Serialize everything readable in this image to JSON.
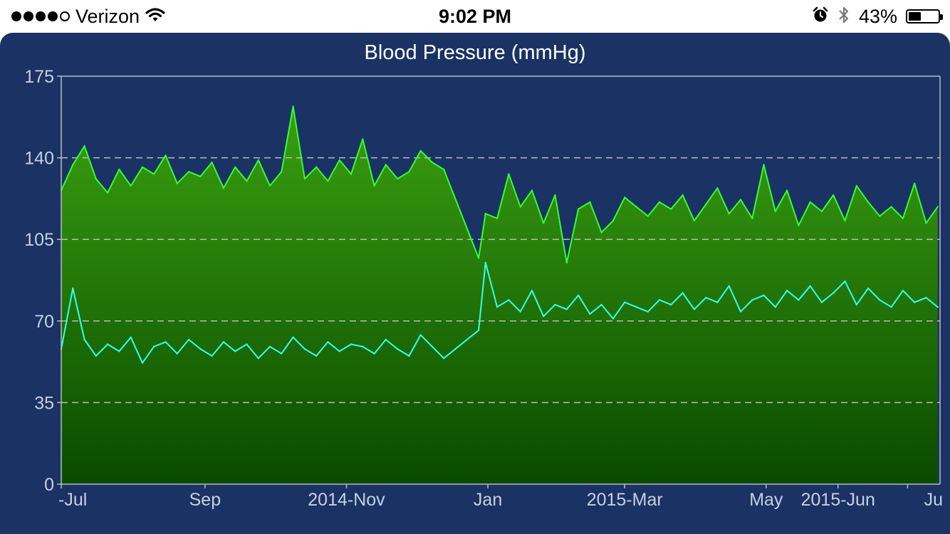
{
  "status_bar": {
    "signal_filled": 4,
    "signal_total": 5,
    "carrier": "Verizon",
    "time": "9:02 PM",
    "battery_percent": "43%",
    "battery_level": 0.43,
    "icons": [
      "wifi-icon",
      "alarm-icon",
      "bluetooth-icon",
      "battery-icon"
    ]
  },
  "colors": {
    "panel_bg": "#1a3264",
    "systolic_line": "#33ff33",
    "diastolic_line": "#33ffee",
    "fill_top": "#3aa010",
    "fill_bottom": "#0a4a00",
    "grid": "#bbbbbb",
    "axis_text": "#c8d0e0"
  },
  "chart_data": {
    "type": "area",
    "title": "Blood Pressure (mmHg)",
    "xlabel": "",
    "ylabel": "",
    "ylim": [
      0,
      175
    ],
    "yticks": [
      0,
      35,
      70,
      105,
      140,
      175
    ],
    "grid": "dashed horizontal at 35, 70, 105, 140",
    "x_range": [
      "2014-07-01",
      "2015-07-15"
    ],
    "xtick_labels": [
      {
        "label": "-Jul",
        "date": "2014-07-01"
      },
      {
        "label": "Sep",
        "date": "2014-09-01"
      },
      {
        "label": "2014-Nov",
        "date": "2014-11-01"
      },
      {
        "label": "Jan",
        "date": "2015-01-01"
      },
      {
        "label": "2015-Mar",
        "date": "2015-03-01"
      },
      {
        "label": "May",
        "date": "2015-05-01"
      },
      {
        "label": "2015-Jun",
        "date": "2015-06-01"
      },
      {
        "label": "Ju",
        "date": "2015-07-01"
      }
    ],
    "series": [
      {
        "id": "systolic",
        "x": [
          "2014-07-01",
          "2014-07-06",
          "2014-07-11",
          "2014-07-16",
          "2014-07-21",
          "2014-07-26",
          "2014-07-31",
          "2014-08-05",
          "2014-08-10",
          "2014-08-15",
          "2014-08-20",
          "2014-08-25",
          "2014-08-30",
          "2014-09-04",
          "2014-09-09",
          "2014-09-14",
          "2014-09-19",
          "2014-09-24",
          "2014-09-29",
          "2014-10-04",
          "2014-10-09",
          "2014-10-14",
          "2014-10-19",
          "2014-10-24",
          "2014-10-29",
          "2014-11-03",
          "2014-11-08",
          "2014-11-13",
          "2014-11-18",
          "2014-11-23",
          "2014-11-28",
          "2014-12-03",
          "2014-12-08",
          "2014-12-13",
          "2014-12-28",
          "2014-12-31",
          "2015-01-05",
          "2015-01-10",
          "2015-01-15",
          "2015-01-20",
          "2015-01-25",
          "2015-01-30",
          "2015-02-04",
          "2015-02-09",
          "2015-02-14",
          "2015-02-19",
          "2015-02-24",
          "2015-03-01",
          "2015-03-06",
          "2015-03-11",
          "2015-03-16",
          "2015-03-21",
          "2015-03-26",
          "2015-03-31",
          "2015-04-05",
          "2015-04-10",
          "2015-04-15",
          "2015-04-20",
          "2015-04-25",
          "2015-04-30",
          "2015-05-05",
          "2015-05-10",
          "2015-05-15",
          "2015-05-20",
          "2015-05-25",
          "2015-05-30",
          "2015-06-04",
          "2015-06-09",
          "2015-06-14",
          "2015-06-19",
          "2015-06-24",
          "2015-06-29",
          "2015-07-04",
          "2015-07-09",
          "2015-07-14"
        ],
        "y": [
          126,
          137,
          145,
          131,
          125,
          135,
          128,
          136,
          133,
          141,
          129,
          134,
          132,
          138,
          127,
          136,
          130,
          139,
          128,
          134,
          162,
          131,
          136,
          130,
          139,
          133,
          148,
          128,
          137,
          131,
          134,
          143,
          138,
          135,
          97,
          116,
          114,
          133,
          119,
          126,
          112,
          124,
          95,
          118,
          121,
          108,
          113,
          123,
          119,
          115,
          121,
          118,
          124,
          113,
          120,
          127,
          116,
          122,
          114,
          137,
          117,
          126,
          111,
          121,
          117,
          124,
          113,
          128,
          121,
          115,
          119,
          114,
          129,
          112,
          119
        ]
      },
      {
        "id": "diastolic",
        "x": [
          "2014-07-01",
          "2014-07-06",
          "2014-07-11",
          "2014-07-16",
          "2014-07-21",
          "2014-07-26",
          "2014-07-31",
          "2014-08-05",
          "2014-08-10",
          "2014-08-15",
          "2014-08-20",
          "2014-08-25",
          "2014-08-30",
          "2014-09-04",
          "2014-09-09",
          "2014-09-14",
          "2014-09-19",
          "2014-09-24",
          "2014-09-29",
          "2014-10-04",
          "2014-10-09",
          "2014-10-14",
          "2014-10-19",
          "2014-10-24",
          "2014-10-29",
          "2014-11-03",
          "2014-11-08",
          "2014-11-13",
          "2014-11-18",
          "2014-11-23",
          "2014-11-28",
          "2014-12-03",
          "2014-12-08",
          "2014-12-13",
          "2014-12-28",
          "2014-12-31",
          "2015-01-05",
          "2015-01-10",
          "2015-01-15",
          "2015-01-20",
          "2015-01-25",
          "2015-01-30",
          "2015-02-04",
          "2015-02-09",
          "2015-02-14",
          "2015-02-19",
          "2015-02-24",
          "2015-03-01",
          "2015-03-06",
          "2015-03-11",
          "2015-03-16",
          "2015-03-21",
          "2015-03-26",
          "2015-03-31",
          "2015-04-05",
          "2015-04-10",
          "2015-04-15",
          "2015-04-20",
          "2015-04-25",
          "2015-04-30",
          "2015-05-05",
          "2015-05-10",
          "2015-05-15",
          "2015-05-20",
          "2015-05-25",
          "2015-05-30",
          "2015-06-04",
          "2015-06-09",
          "2015-06-14",
          "2015-06-19",
          "2015-06-24",
          "2015-06-29",
          "2015-07-04",
          "2015-07-09",
          "2015-07-14"
        ],
        "y": [
          58,
          84,
          62,
          55,
          60,
          57,
          63,
          52,
          59,
          61,
          56,
          62,
          58,
          55,
          61,
          57,
          60,
          54,
          59,
          56,
          63,
          58,
          55,
          61,
          57,
          60,
          59,
          56,
          62,
          58,
          55,
          64,
          59,
          54,
          66,
          95,
          76,
          79,
          74,
          83,
          72,
          77,
          75,
          81,
          73,
          77,
          71,
          78,
          76,
          74,
          79,
          77,
          82,
          75,
          80,
          78,
          85,
          74,
          79,
          81,
          76,
          83,
          79,
          85,
          78,
          82,
          87,
          77,
          84,
          79,
          76,
          83,
          78,
          80,
          76
        ]
      }
    ]
  }
}
